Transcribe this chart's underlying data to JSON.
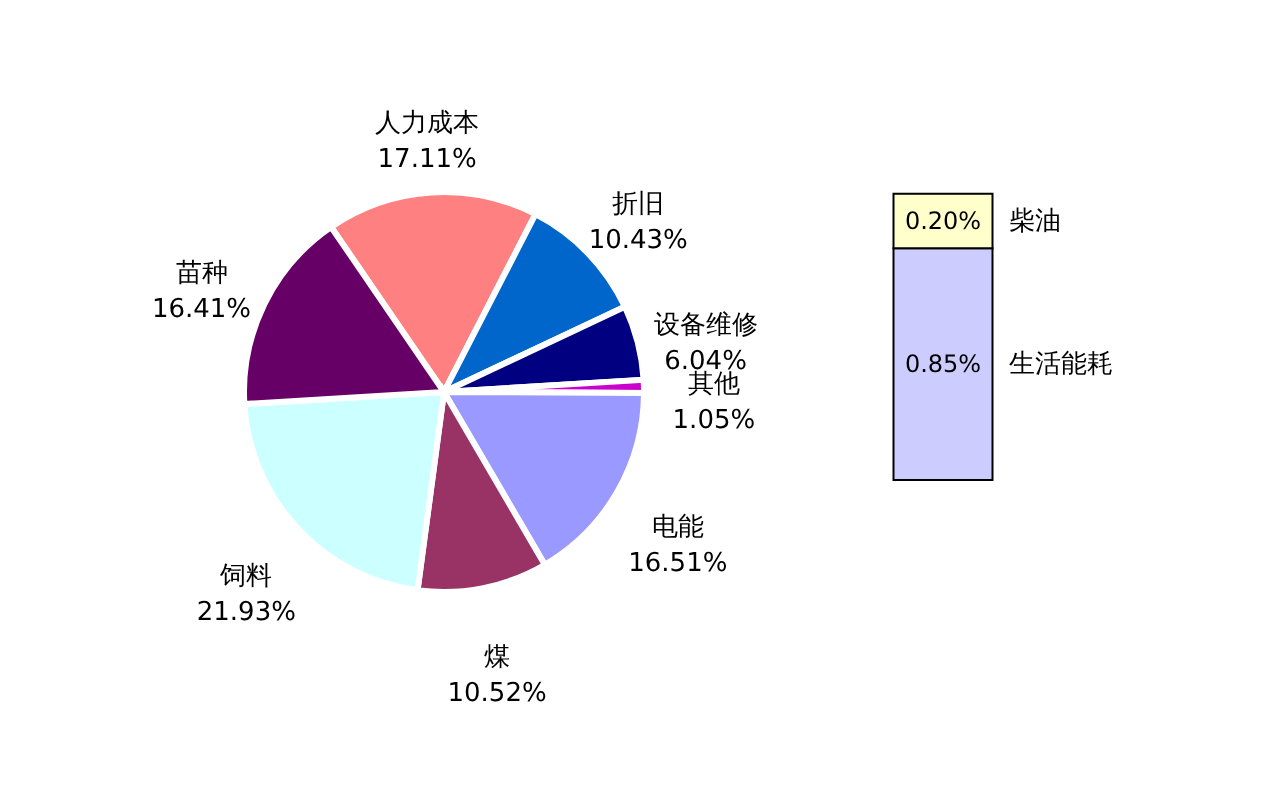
{
  "chart_data": [
    {
      "type": "pie",
      "categories": [
        "人力成本",
        "折旧",
        "设备维修",
        "其他",
        "电能",
        "煤",
        "饲料",
        "苗种"
      ],
      "values": [
        17.11,
        10.43,
        6.04,
        1.05,
        16.51,
        10.52,
        21.93,
        16.41
      ],
      "value_labels": [
        "17.11%",
        "10.43%",
        "6.04%",
        "1.05%",
        "16.51%",
        "10.52%",
        "21.93%",
        "16.41%"
      ],
      "colors": [
        "#ff8080",
        "#0066cc",
        "#000080",
        "#cc00cc",
        "#9999ff",
        "#993366",
        "#ccffff",
        "#660066"
      ]
    },
    {
      "type": "bar",
      "stacked": true,
      "categories": [
        null
      ],
      "series": [
        {
          "name": "生活能耗",
          "color": "#ccccff",
          "values": [
            0.85
          ],
          "value_labels": [
            "0.85%"
          ]
        },
        {
          "name": "柴油",
          "color": "#ffffcc",
          "values": [
            0.2
          ],
          "value_labels": [
            "0.20%"
          ]
        }
      ]
    }
  ]
}
